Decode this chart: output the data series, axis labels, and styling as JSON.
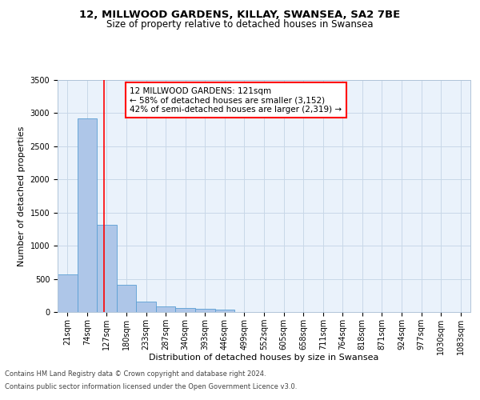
{
  "title_line1": "12, MILLWOOD GARDENS, KILLAY, SWANSEA, SA2 7BE",
  "title_line2": "Size of property relative to detached houses in Swansea",
  "xlabel": "Distribution of detached houses by size in Swansea",
  "ylabel": "Number of detached properties",
  "bar_labels": [
    "21sqm",
    "74sqm",
    "127sqm",
    "180sqm",
    "233sqm",
    "287sqm",
    "340sqm",
    "393sqm",
    "446sqm",
    "499sqm",
    "552sqm",
    "605sqm",
    "658sqm",
    "711sqm",
    "764sqm",
    "818sqm",
    "871sqm",
    "924sqm",
    "977sqm",
    "1030sqm",
    "1083sqm"
  ],
  "bar_values": [
    570,
    2920,
    1320,
    410,
    155,
    80,
    60,
    50,
    40,
    0,
    0,
    0,
    0,
    0,
    0,
    0,
    0,
    0,
    0,
    0,
    0
  ],
  "bar_color": "#aec6e8",
  "bar_edge_color": "#5a9fd4",
  "red_line_x": 1.87,
  "annotation_text": "12 MILLWOOD GARDENS: 121sqm\n← 58% of detached houses are smaller (3,152)\n42% of semi-detached houses are larger (2,319) →",
  "ylim": [
    0,
    3500
  ],
  "yticks": [
    0,
    500,
    1000,
    1500,
    2000,
    2500,
    3000,
    3500
  ],
  "grid_color": "#c8d8e8",
  "bg_color": "#eaf2fb",
  "footer_line1": "Contains HM Land Registry data © Crown copyright and database right 2024.",
  "footer_line2": "Contains public sector information licensed under the Open Government Licence v3.0.",
  "title_fontsize": 9.5,
  "subtitle_fontsize": 8.5,
  "axis_label_fontsize": 8,
  "tick_fontsize": 7,
  "annotation_fontsize": 7.5,
  "footer_fontsize": 6
}
